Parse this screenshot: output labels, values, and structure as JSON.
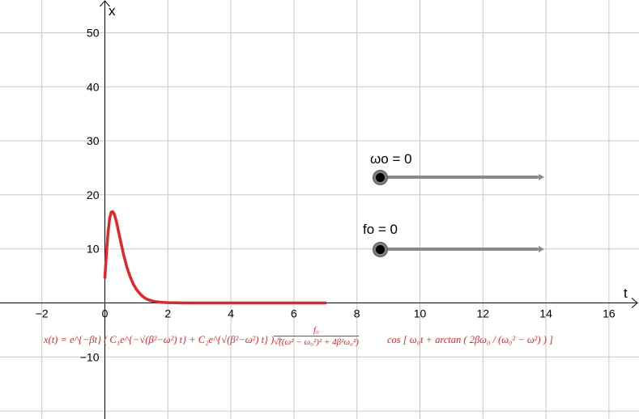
{
  "chart_data": {
    "type": "line",
    "xlabel": "t",
    "ylabel": "x",
    "xlim": [
      -3.4,
      17.2
    ],
    "ylim": [
      -21,
      56
    ],
    "grid": true,
    "x_ticks": [
      -2,
      0,
      2,
      4,
      6,
      8,
      10,
      12,
      14,
      16
    ],
    "y_ticks": [
      -10,
      10,
      20,
      30,
      40,
      50
    ],
    "x_tick_labels": [
      "−2",
      "0",
      "2",
      "4",
      "6",
      "8",
      "10",
      "12",
      "14",
      "16"
    ],
    "y_tick_labels": [
      "−10",
      "10",
      "20",
      "30",
      "40",
      "50"
    ],
    "series": [
      {
        "color": "#e0262a",
        "x": [
          0.0,
          0.05,
          0.1,
          0.15,
          0.2,
          0.25,
          0.3,
          0.35,
          0.4,
          0.5,
          0.6,
          0.7,
          0.8,
          0.9,
          1.0,
          1.1,
          1.2,
          1.3,
          1.4,
          1.5,
          1.6,
          1.8,
          2.0,
          2.5,
          3.0,
          4.0,
          5.0,
          6.0,
          7.0
        ],
        "y": [
          4.7,
          9.2,
          13.0,
          15.6,
          16.8,
          16.9,
          16.4,
          15.4,
          14.1,
          11.4,
          8.8,
          6.6,
          4.9,
          3.5,
          2.5,
          1.8,
          1.2,
          0.8,
          0.55,
          0.37,
          0.25,
          0.11,
          0.05,
          0.0,
          0.0,
          0.0,
          0.0,
          0.0,
          0.0
        ]
      }
    ]
  },
  "sliders": [
    {
      "label": "ωo = 0",
      "value": 0
    },
    {
      "label": "fo = 0",
      "value": 0
    }
  ],
  "formula": {
    "main": "x(t) = e^{−βt} ( C₁e^{−√(β²−ω²) t} + C₂e^{√(β²−ω²) t} ) +",
    "numerator": "f₀",
    "denominator": "√((ω² − ω₀²)² + 4β²ω₀²)",
    "tail": "cos [ ω₀t + arctan ( 2βω₀ / (ω₀² − ω²) ) ]"
  },
  "colors": {
    "curve": "#e0262a",
    "grid": "#c8c8c8",
    "axis": "#000000",
    "slider_track": "#8a8a8a",
    "slider_knob": "#000000"
  }
}
